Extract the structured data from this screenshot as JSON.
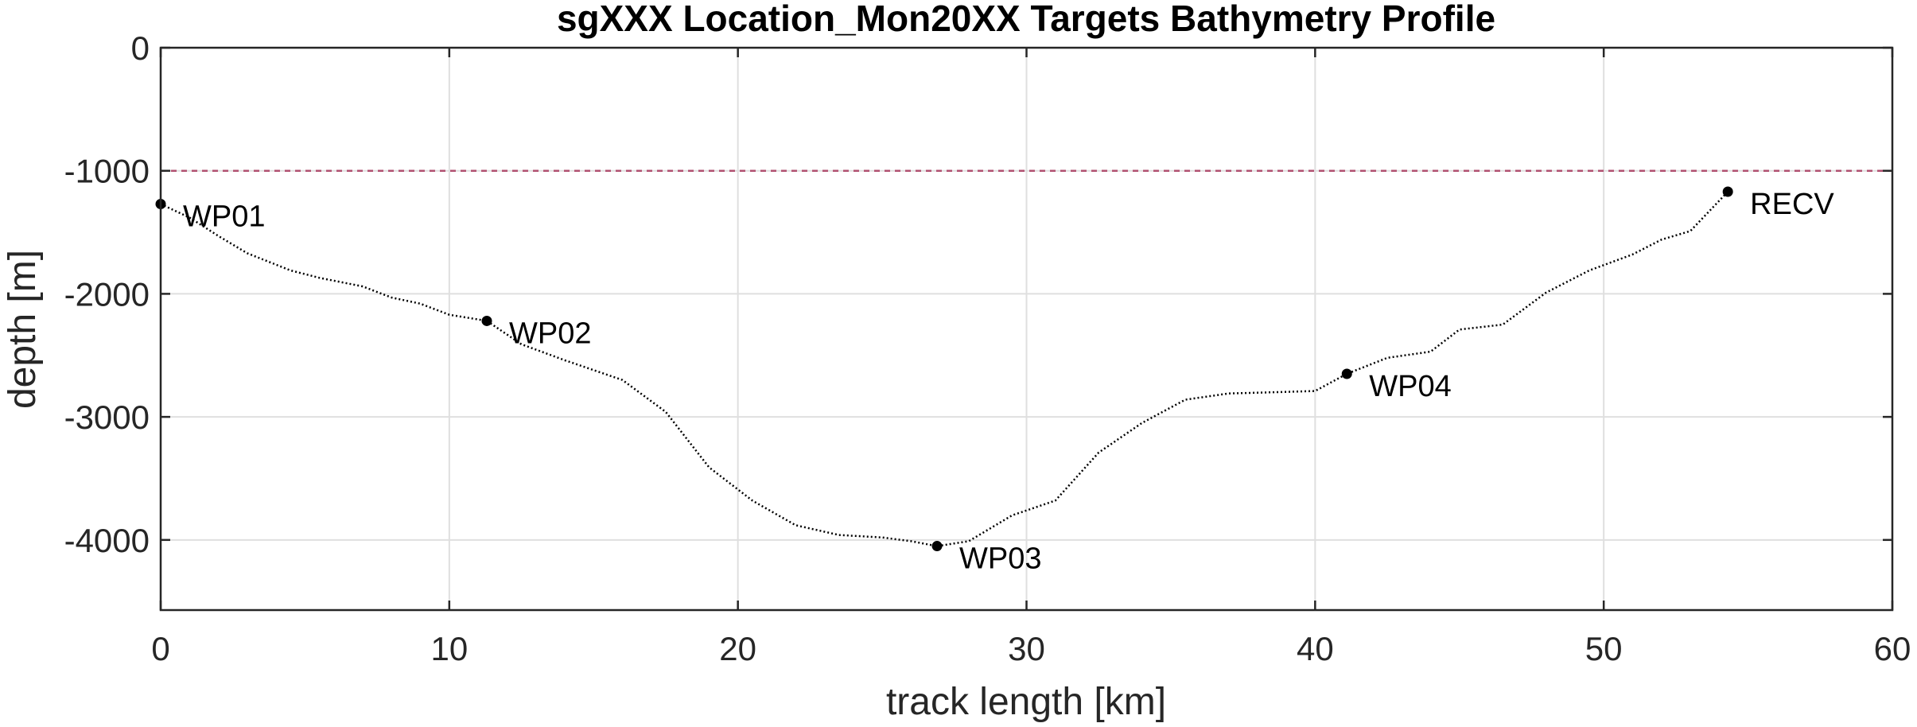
{
  "chart_data": {
    "type": "line",
    "title": "sgXXX Location_Mon20XX Targets Bathymetry Profile",
    "xlabel": "track length [km]",
    "ylabel": "depth [m]",
    "xlim": [
      0,
      60
    ],
    "ylim": [
      -4570,
      0
    ],
    "xticks": [
      0,
      10,
      20,
      30,
      40,
      50,
      60
    ],
    "yticks": [
      0,
      -1000,
      -2000,
      -3000,
      -4000
    ],
    "grid": true,
    "reference_line": {
      "y": -1000,
      "style": "dashed",
      "color": "#b05070"
    },
    "series": [
      {
        "style": "dotted",
        "color": "#000000",
        "x": [
          0,
          1,
          2,
          3,
          4.5,
          5.5,
          7,
          8,
          9,
          10,
          11.3,
          12.5,
          14,
          16,
          17.5,
          19,
          20.5,
          22,
          23.5,
          25,
          26,
          26.9,
          28,
          29.5,
          31,
          32.5,
          34,
          35.5,
          37,
          38.5,
          40,
          41.1,
          42.5,
          44,
          45,
          46.5,
          48,
          49.5,
          51,
          52,
          53,
          54.3
        ],
        "y": [
          -1270,
          -1380,
          -1530,
          -1670,
          -1810,
          -1870,
          -1940,
          -2030,
          -2080,
          -2170,
          -2220,
          -2410,
          -2540,
          -2700,
          -2960,
          -3410,
          -3680,
          -3880,
          -3960,
          -3980,
          -4010,
          -4050,
          -4010,
          -3800,
          -3680,
          -3290,
          -3050,
          -2860,
          -2810,
          -2800,
          -2790,
          -2650,
          -2520,
          -2470,
          -2290,
          -2250,
          -1990,
          -1810,
          -1680,
          -1560,
          -1490,
          -1170
        ]
      }
    ],
    "waypoints": [
      {
        "label": "WP01",
        "x": 0,
        "y": -1270
      },
      {
        "label": "WP02",
        "x": 11.3,
        "y": -2220
      },
      {
        "label": "WP03",
        "x": 26.9,
        "y": -4050
      },
      {
        "label": "WP04",
        "x": 41.1,
        "y": -2650
      },
      {
        "label": "RECV",
        "x": 54.3,
        "y": -1170
      }
    ]
  }
}
